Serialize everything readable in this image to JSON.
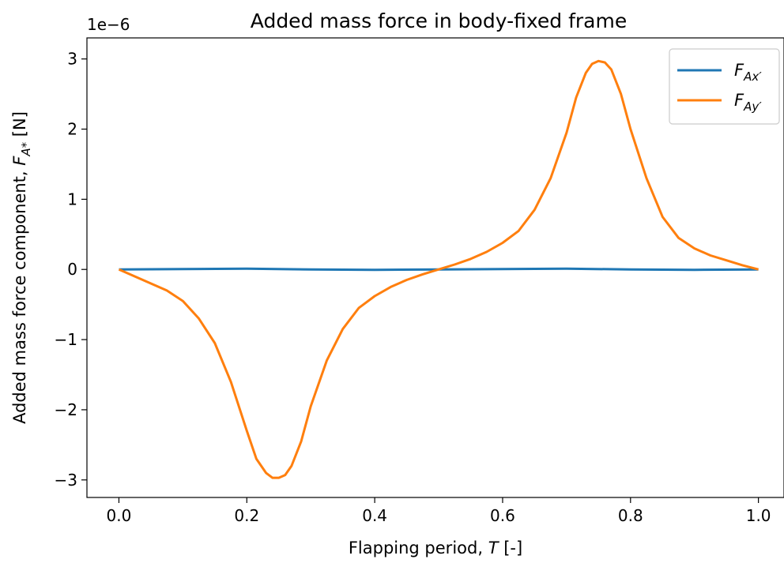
{
  "chart_data": {
    "type": "line",
    "title": "Added mass force in body-fixed frame",
    "xlabel": "Flapping period, T [-]",
    "ylabel": "Added mass force component, F_{A*} [N]",
    "y_offset_label": "1e−6",
    "xlim": [
      -0.05,
      1.04
    ],
    "ylim": [
      -3.25,
      3.3
    ],
    "x_ticks": [
      0.0,
      0.2,
      0.4,
      0.6,
      0.8,
      1.0
    ],
    "x_tick_labels": [
      "0.0",
      "0.2",
      "0.4",
      "0.6",
      "0.8",
      "1.0"
    ],
    "y_ticks": [
      -3,
      -2,
      -1,
      0,
      1,
      2,
      3
    ],
    "y_tick_labels": [
      "−3",
      "−2",
      "−1",
      "0",
      "1",
      "2",
      "3"
    ],
    "grid": false,
    "legend_position": "top-right",
    "series": [
      {
        "name": "F_{Ax'}",
        "color": "#1f77b4",
        "x": [
          0.0,
          0.1,
          0.2,
          0.3,
          0.4,
          0.5,
          0.6,
          0.7,
          0.8,
          0.9,
          1.0
        ],
        "values": [
          0.0,
          0.005,
          0.01,
          0.0,
          -0.005,
          0.0,
          0.005,
          0.01,
          0.0,
          -0.005,
          0.0
        ]
      },
      {
        "name": "F_{Ay'}",
        "color": "#ff7f0e",
        "x": [
          0.0,
          0.025,
          0.05,
          0.075,
          0.1,
          0.125,
          0.15,
          0.175,
          0.2,
          0.215,
          0.23,
          0.24,
          0.25,
          0.26,
          0.27,
          0.285,
          0.3,
          0.325,
          0.35,
          0.375,
          0.4,
          0.425,
          0.45,
          0.475,
          0.5,
          0.525,
          0.55,
          0.575,
          0.6,
          0.625,
          0.65,
          0.675,
          0.7,
          0.715,
          0.73,
          0.74,
          0.75,
          0.76,
          0.77,
          0.785,
          0.8,
          0.825,
          0.85,
          0.875,
          0.9,
          0.925,
          0.95,
          0.975,
          1.0
        ],
        "values": [
          0.0,
          -0.1,
          -0.2,
          -0.3,
          -0.45,
          -0.7,
          -1.05,
          -1.6,
          -2.3,
          -2.7,
          -2.9,
          -2.97,
          -2.97,
          -2.93,
          -2.8,
          -2.45,
          -1.95,
          -1.3,
          -0.85,
          -0.55,
          -0.38,
          -0.25,
          -0.15,
          -0.07,
          0.0,
          0.07,
          0.15,
          0.25,
          0.38,
          0.55,
          0.85,
          1.3,
          1.95,
          2.45,
          2.8,
          2.93,
          2.97,
          2.95,
          2.85,
          2.5,
          2.0,
          1.3,
          0.75,
          0.45,
          0.3,
          0.2,
          0.13,
          0.06,
          0.0
        ]
      }
    ]
  }
}
